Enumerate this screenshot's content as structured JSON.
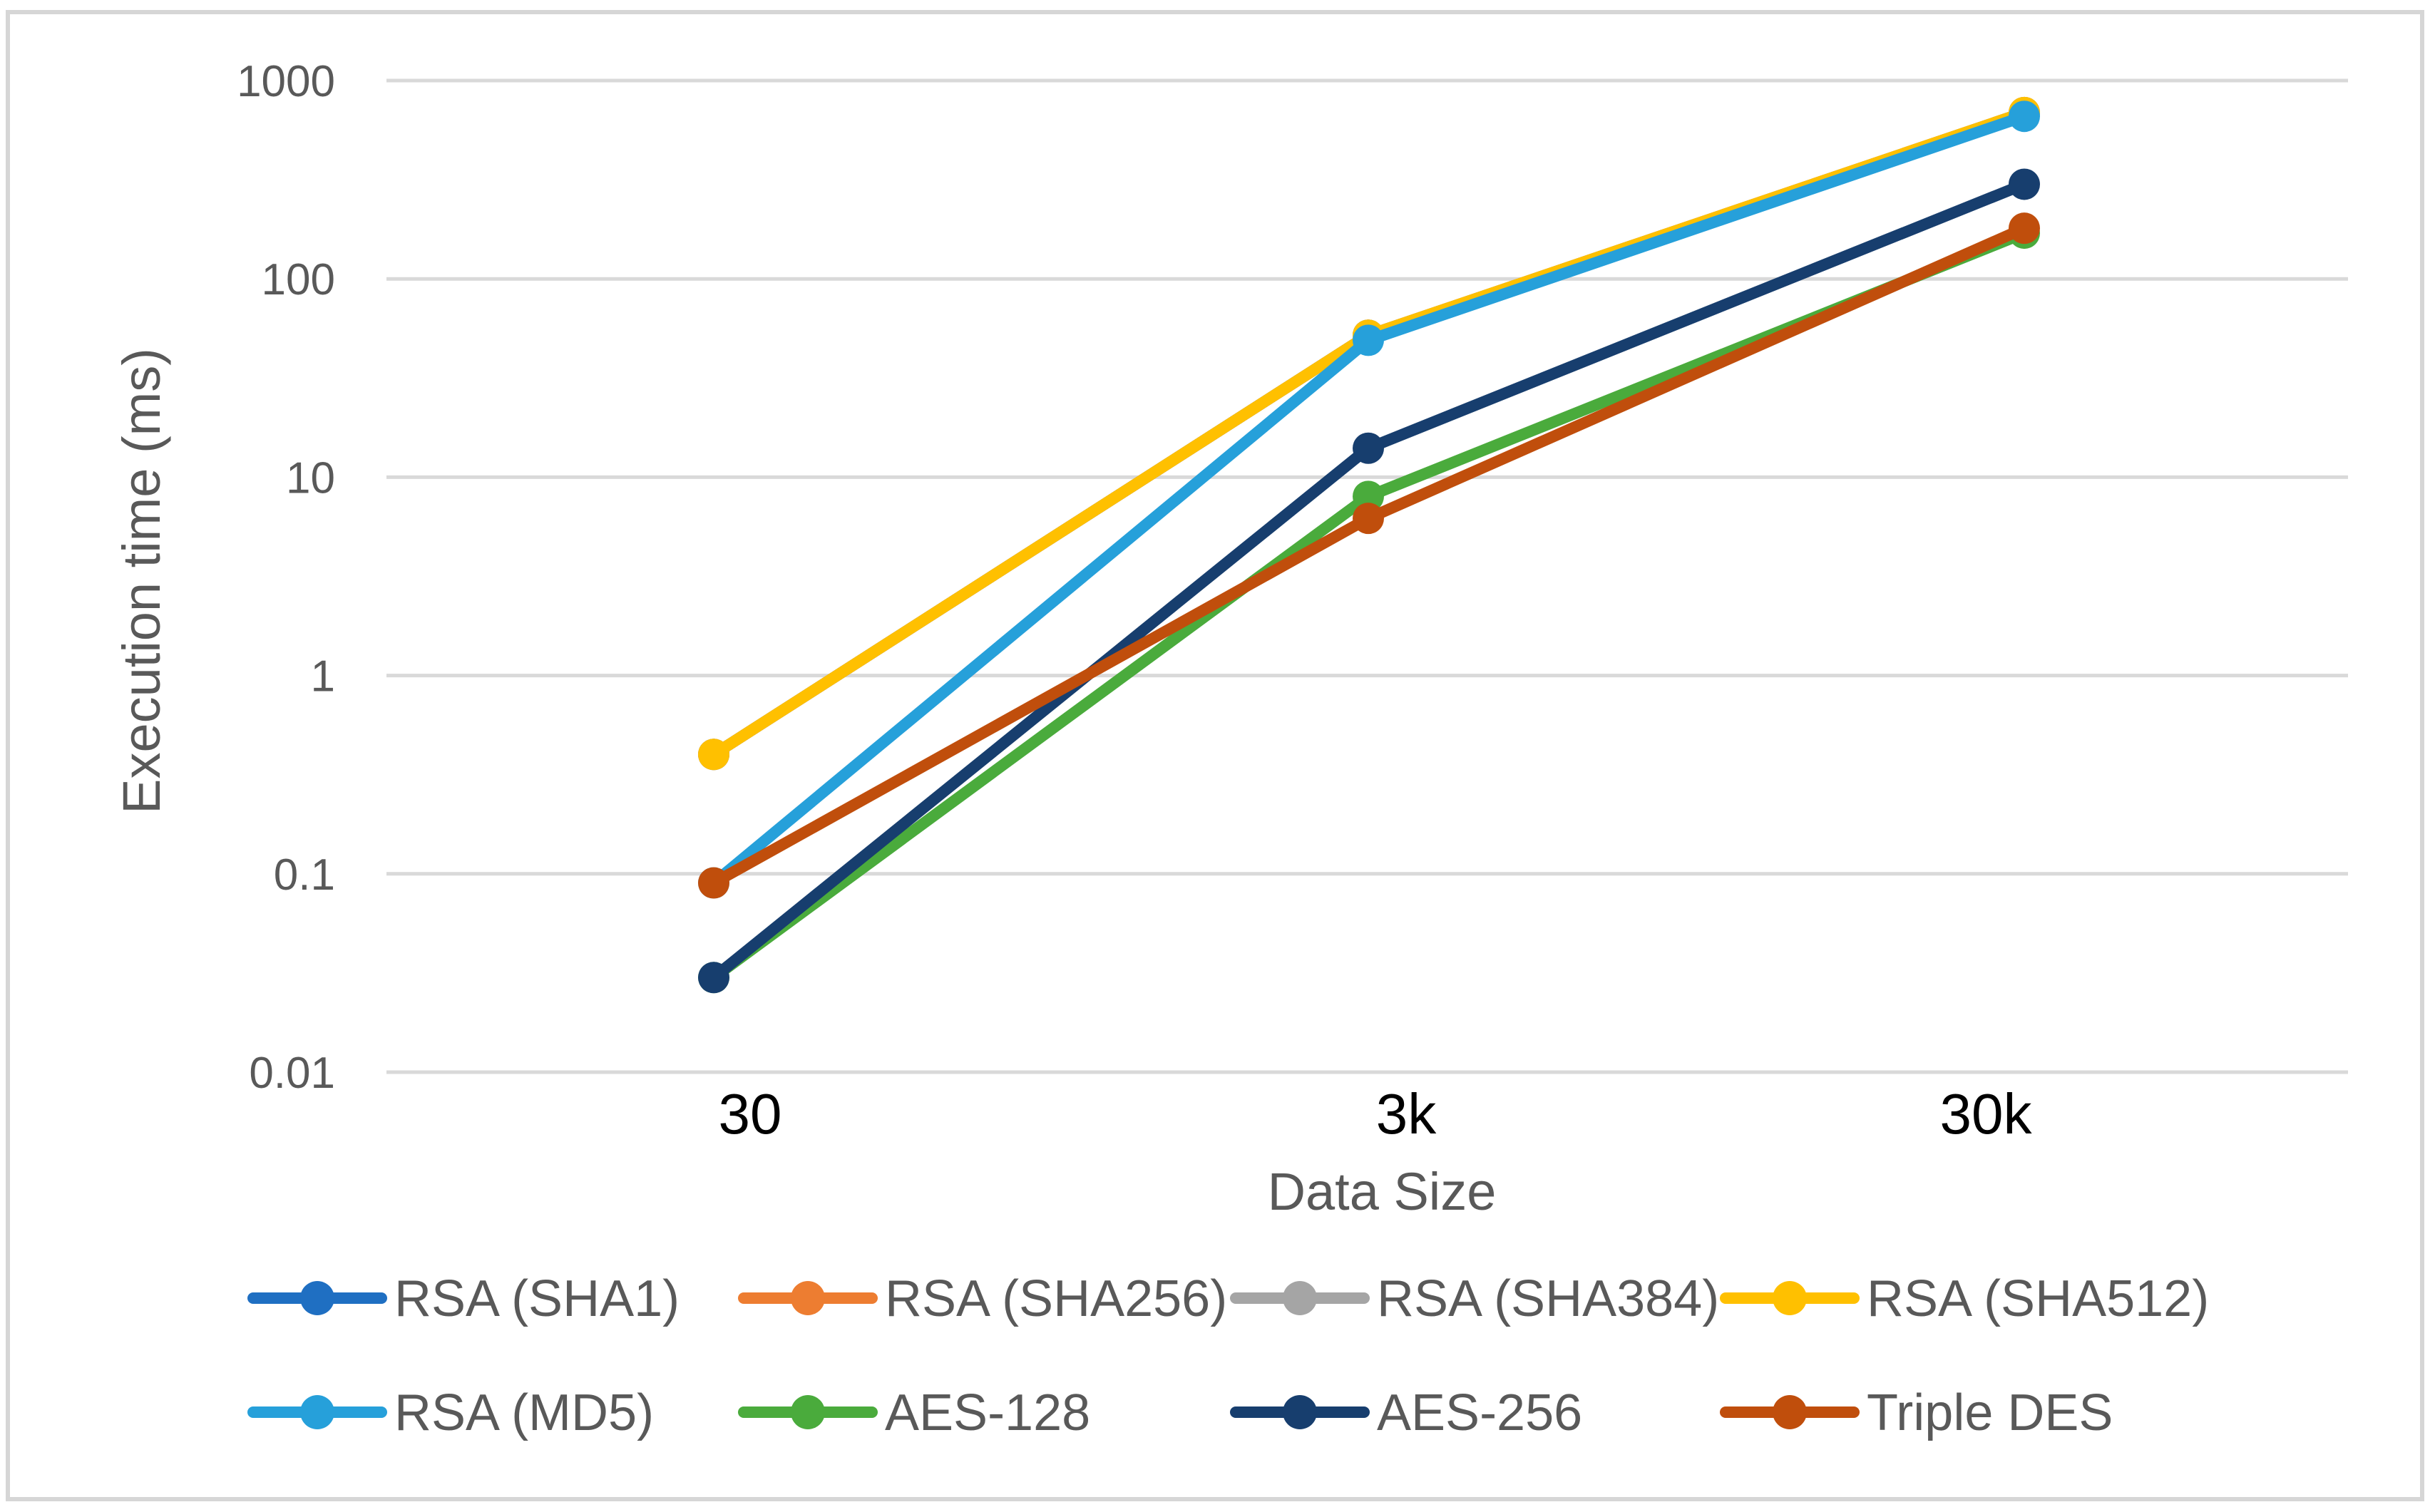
{
  "chart_data": {
    "type": "line",
    "title": "",
    "xlabel": "Data Size",
    "ylabel": "Execution time (ms)",
    "y_scale": "log",
    "ylim": [
      0.01,
      1000
    ],
    "y_ticks": [
      {
        "value": 0.01,
        "label": "0.01"
      },
      {
        "value": 0.1,
        "label": "0.1"
      },
      {
        "value": 1,
        "label": "1"
      },
      {
        "value": 10,
        "label": "10"
      },
      {
        "value": 100,
        "label": "100"
      },
      {
        "value": 1000,
        "label": "1000"
      }
    ],
    "grid": true,
    "legend_position": "bottom",
    "categories": [
      "30",
      "3k",
      "30k"
    ],
    "series": [
      {
        "name": "RSA (SHA1)",
        "color": "#1f6fc2",
        "values": [
          0.4,
          52,
          680
        ]
      },
      {
        "name": "RSA (SHA256)",
        "color": "#ed7d31",
        "values": [
          0.4,
          52,
          690
        ]
      },
      {
        "name": "RSA (SHA384)",
        "color": "#a5a5a5",
        "values": [
          0.4,
          52,
          690
        ]
      },
      {
        "name": "RSA (SHA512)",
        "color": "#ffc000",
        "values": [
          0.4,
          52,
          690
        ]
      },
      {
        "name": "RSA (MD5)",
        "color": "#26a0da",
        "values": [
          0.09,
          49,
          660
        ]
      },
      {
        "name": "AES-128",
        "color": "#4aab3c",
        "values": [
          0.03,
          8,
          170
        ]
      },
      {
        "name": "AES-256",
        "color": "#173e6e",
        "values": [
          0.03,
          14,
          300
        ]
      },
      {
        "name": "Triple DES",
        "color": "#c04e0c",
        "values": [
          0.09,
          6.2,
          180
        ]
      }
    ]
  }
}
